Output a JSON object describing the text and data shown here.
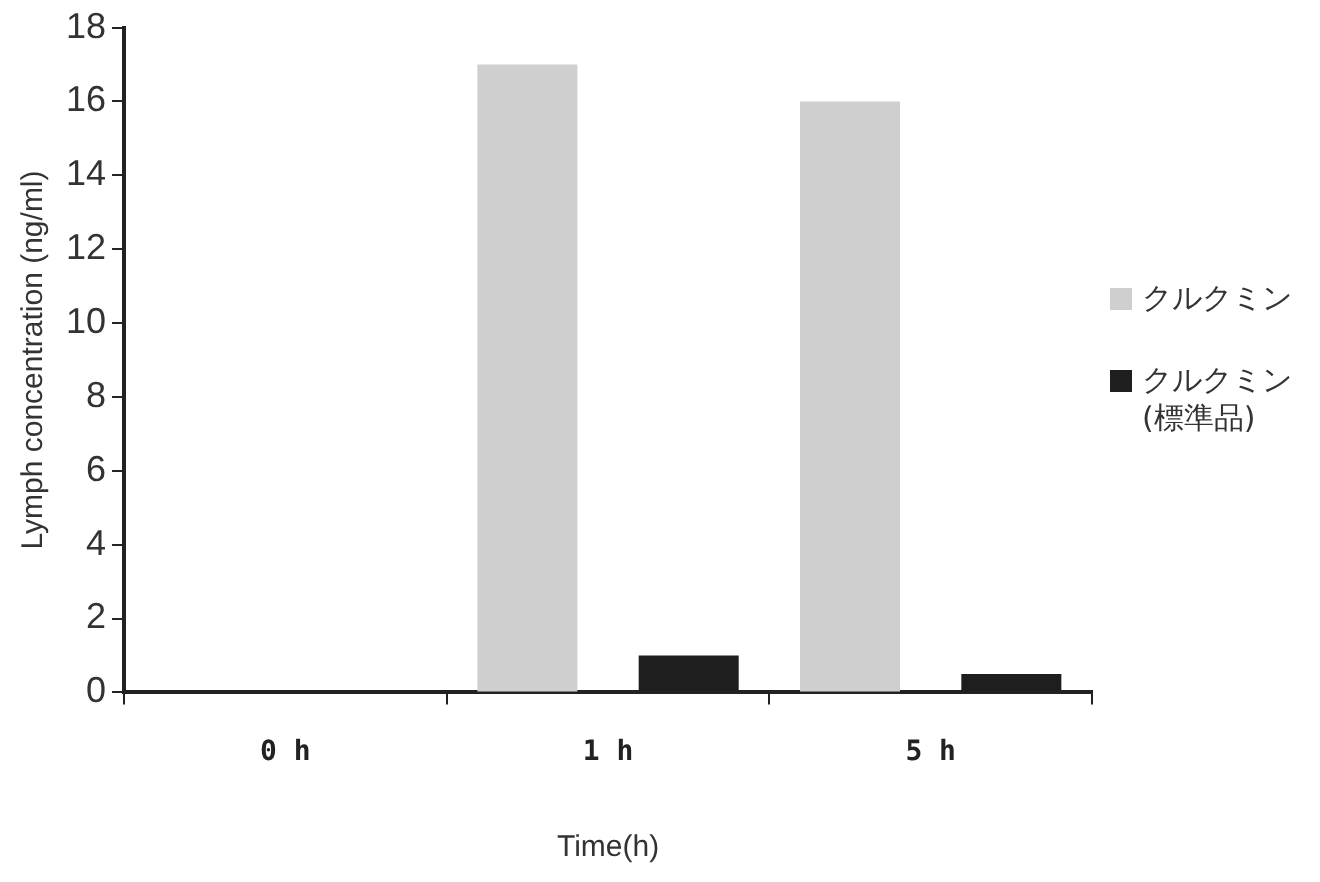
{
  "chart_data": {
    "type": "bar",
    "ylabel": "Lymph concentration (ng/ml)",
    "xlabel": "Time(h)",
    "categories": [
      "0 h",
      "1 h",
      "5 h"
    ],
    "series": [
      {
        "name": "クルクミン",
        "color": "#cfcfcf",
        "values": [
          0,
          17,
          16
        ]
      },
      {
        "name": "クルクミン (標準品)",
        "color": "#1e1e1e",
        "values": [
          0,
          1,
          0.5
        ]
      }
    ],
    "ylim": [
      0,
      18
    ],
    "yticks": [
      0,
      2,
      4,
      6,
      8,
      10,
      12,
      14,
      16,
      18
    ],
    "grid": false,
    "legend": "right"
  }
}
